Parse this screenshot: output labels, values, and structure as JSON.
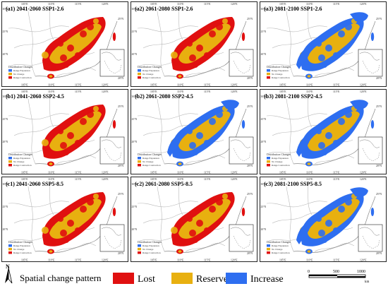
{
  "colors": {
    "lost": "#e01010",
    "reserved": "#e8b010",
    "increase": "#2e6ef0",
    "land": "#ffffff",
    "border": "#b8b8b8",
    "frame": "#222222",
    "inset_bg": "#ffffff",
    "island": "#e01010"
  },
  "panels": [
    {
      "id": "a1",
      "title": "(a1) 2041-2060 SSP1-2.6",
      "pattern": "lost-dominant"
    },
    {
      "id": "a2",
      "title": "(a2) 2061-2080 SSP1-2.6",
      "pattern": "lost-dominant"
    },
    {
      "id": "a3",
      "title": "(a3) 2081-2100 SSP1-2.6",
      "pattern": "increase-dominant"
    },
    {
      "id": "b1",
      "title": "(b1) 2041-2060 SSP2-4.5",
      "pattern": "lost-dominant"
    },
    {
      "id": "b2",
      "title": "(b2) 2061-2080 SSP2-4.5",
      "pattern": "increase-dominant"
    },
    {
      "id": "b3",
      "title": "(b3) 2081-2100 SSP2-4.5",
      "pattern": "increase-dominant"
    },
    {
      "id": "c1",
      "title": "(c1) 2041-2060 SSP5-8.5",
      "pattern": "lost-dominant"
    },
    {
      "id": "c2",
      "title": "(c2) 2061-2080 SSP5-8.5",
      "pattern": "lost-dominant"
    },
    {
      "id": "c3",
      "title": "(c3) 2081-2100 SSP5-8.5",
      "pattern": "increase-dominant"
    }
  ],
  "axes": {
    "top_ticks": [
      "105°E",
      "110°E",
      "115°E",
      "120°E"
    ],
    "bottom_ticks": [
      "105°E",
      "110°E",
      "115°E",
      "120°E"
    ],
    "right_ticks": [
      "25°N",
      "20°N"
    ],
    "left_ticks": [
      "30°N",
      "25°N",
      "20°N"
    ]
  },
  "panel_legend": {
    "title": "Distribution Changes",
    "items": [
      "Range Expansion",
      "No Change",
      "Range Contraction"
    ]
  },
  "footer": {
    "north_label": "N",
    "heading": "Spatial  change pattern",
    "legend": [
      {
        "label": "Lost",
        "color": "#e01010"
      },
      {
        "label": "Reserved",
        "color": "#e8b010"
      },
      {
        "label": "Increase",
        "color": "#2e6ef0"
      }
    ],
    "scale_ticks": [
      "0",
      "500",
      "1000"
    ],
    "scale_unit": "km"
  }
}
